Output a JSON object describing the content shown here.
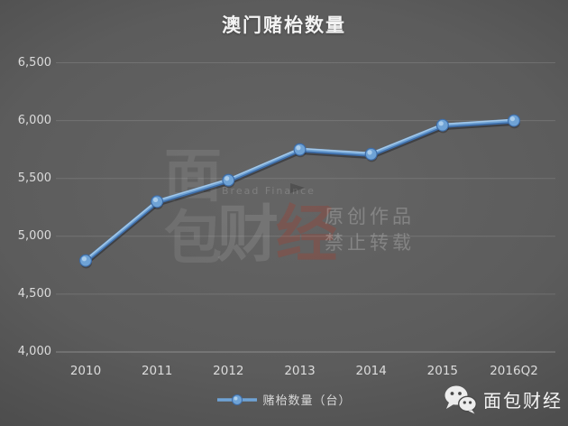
{
  "chart_data": {
    "type": "line",
    "title": "澳门赌枱数量",
    "categories": [
      "2010",
      "2011",
      "2012",
      "2013",
      "2014",
      "2015",
      "2016Q2"
    ],
    "series": [
      {
        "name": "赌枱数量（台）",
        "values": [
          4790,
          5300,
          5485,
          5750,
          5710,
          5960,
          6000
        ]
      }
    ],
    "xlabel": "",
    "ylabel": "",
    "ylim": [
      4000,
      6500
    ],
    "ytick_step": 500,
    "ytick_labels": [
      "4,000",
      "4,500",
      "5,000",
      "5,500",
      "6,000",
      "6,500"
    ],
    "grid": true,
    "legend_position": "bottom",
    "line_color": "#6fa3d6",
    "line_edge_color": "#3e6da8",
    "line_highlight_color": "#a6c9e8",
    "background_color": "#5c5c5c",
    "label_color": "#dcdcdc"
  },
  "legend": {
    "marker": "line-with-circle-marker",
    "label": "赌枱数量（台）"
  },
  "watermark": {
    "logo_char_1": "面",
    "logo_char_2": "包",
    "brand_en": "Bread Finance",
    "brand_cn_1": "财",
    "brand_cn_2": "经",
    "notice_line1": "原创作品",
    "notice_line2": "禁止转载"
  },
  "footer": {
    "icon": "wechat-icon",
    "brand": "面包财经"
  }
}
